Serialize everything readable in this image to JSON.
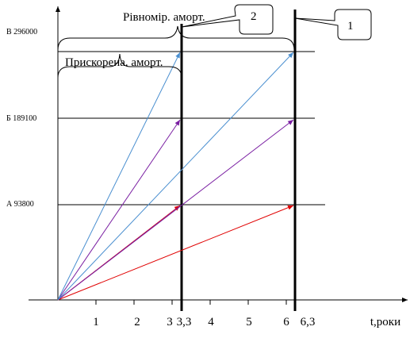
{
  "x_axis": {
    "label": "t,роки",
    "ticks": [
      "1",
      "2",
      "3",
      "3,3",
      "4",
      "5",
      "6",
      "6,3"
    ]
  },
  "levels": [
    {
      "key": "A",
      "label": "А 93800"
    },
    {
      "key": "B",
      "label": "Б 189100"
    },
    {
      "key": "C",
      "label": "В 296000"
    }
  ],
  "braces": {
    "straight_line": "Рівномір. аморт.",
    "accelerated": "Прискорена. аморт."
  },
  "callouts": [
    "2",
    "1"
  ],
  "colors": {
    "A": "#e00000",
    "B": "#7a1fa2",
    "C": "#4a8fd0",
    "axis": "#000000"
  }
}
